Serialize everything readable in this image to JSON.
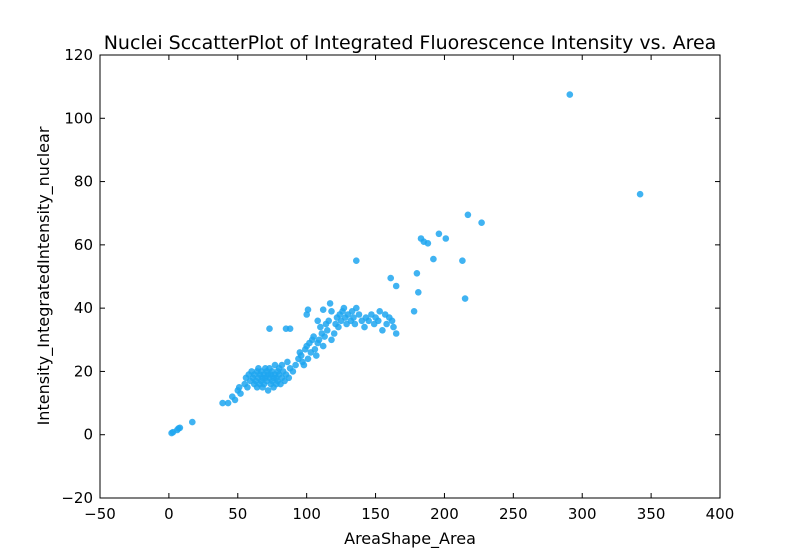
{
  "chart_data": {
    "type": "scatter",
    "title": "Nuclei SccatterPlot of Integrated Fluorescence Intensity vs. Area",
    "xlabel": "AreaShape_Area",
    "ylabel": "Intensity_IntegratedIntensity_nuclear",
    "xlim": [
      -50,
      400
    ],
    "ylim": [
      -20,
      120
    ],
    "xticks": [
      -50,
      0,
      50,
      100,
      150,
      200,
      250,
      300,
      350,
      400
    ],
    "yticks": [
      -20,
      0,
      20,
      40,
      60,
      80,
      100,
      120
    ],
    "xtick_labels": [
      "−50",
      "0",
      "50",
      "100",
      "150",
      "200",
      "250",
      "300",
      "350",
      "400"
    ],
    "ytick_labels": [
      "−20",
      "0",
      "20",
      "40",
      "60",
      "80",
      "100",
      "120"
    ],
    "grid": false,
    "point_color": "#1ea6f0",
    "x": [
      2,
      3,
      6,
      7,
      8,
      17,
      39,
      43,
      46,
      48,
      50,
      51,
      52,
      55,
      56,
      57,
      58,
      59,
      60,
      61,
      62,
      62,
      63,
      64,
      64,
      65,
      65,
      66,
      66,
      67,
      67,
      68,
      68,
      69,
      69,
      70,
      70,
      71,
      71,
      72,
      72,
      73,
      73,
      74,
      74,
      75,
      75,
      76,
      76,
      77,
      77,
      78,
      78,
      79,
      79,
      80,
      80,
      81,
      82,
      82,
      83,
      84,
      85,
      86,
      87,
      88,
      90,
      92,
      94,
      95,
      96,
      97,
      98,
      99,
      100,
      101,
      102,
      103,
      104,
      105,
      106,
      107,
      108,
      109,
      110,
      111,
      112,
      113,
      114,
      115,
      116,
      118,
      118,
      120,
      121,
      122,
      123,
      124,
      125,
      126,
      127,
      128,
      129,
      130,
      132,
      133,
      134,
      135,
      136,
      138,
      140,
      142,
      143,
      145,
      147,
      149,
      150,
      152,
      153,
      155,
      157,
      158,
      160,
      162,
      163,
      165,
      73,
      85,
      88,
      100,
      101,
      108,
      112,
      117,
      136,
      161,
      165,
      178,
      180,
      181,
      183,
      185,
      188,
      192,
      196,
      201,
      213,
      215,
      217,
      227,
      291,
      342
    ],
    "y": [
      0.5,
      0.8,
      1.5,
      2,
      2.2,
      4,
      10,
      10,
      12,
      11,
      14,
      15,
      13,
      16,
      18,
      15,
      19,
      17,
      20,
      18,
      16,
      19,
      17,
      20,
      15,
      18,
      21,
      16,
      19,
      17,
      20,
      18,
      15,
      19,
      16,
      21,
      18,
      20,
      17,
      19,
      14,
      18,
      21,
      16,
      19,
      17,
      20,
      15,
      18,
      22,
      19,
      16,
      18,
      20,
      17,
      21,
      19,
      16,
      18,
      22,
      20,
      17,
      19,
      23,
      18,
      21,
      20,
      22,
      24,
      26,
      25,
      23,
      22,
      27,
      28,
      24,
      29,
      26,
      30,
      31,
      27,
      25,
      29,
      30,
      34,
      32,
      28,
      31,
      35,
      33,
      36,
      30,
      39,
      32,
      35,
      37,
      34,
      38,
      36,
      39,
      40,
      37,
      35,
      38,
      36,
      39,
      37,
      35,
      40,
      38,
      36,
      34,
      37,
      36,
      38,
      35,
      37,
      36,
      39,
      33,
      38,
      35,
      37,
      36,
      34,
      32,
      33.5,
      33.5,
      33.5,
      38,
      39.5,
      36,
      39.5,
      41.5,
      55,
      49.5,
      47,
      39,
      51,
      45,
      62,
      61,
      60.5,
      55.5,
      63.5,
      62,
      55,
      43,
      69.5,
      67,
      107.5,
      76
    ]
  }
}
